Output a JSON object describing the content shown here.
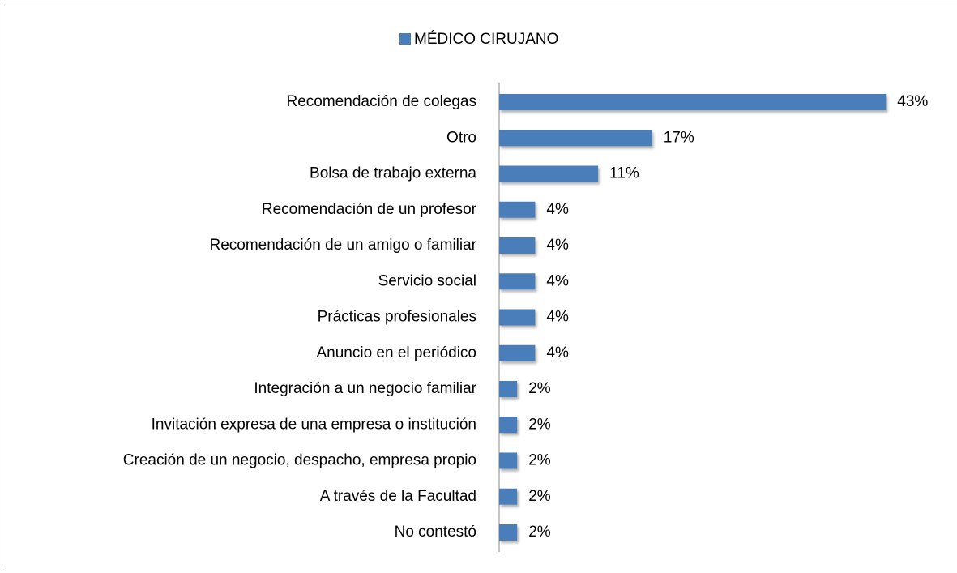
{
  "chart_data": {
    "type": "bar",
    "orientation": "horizontal",
    "categories": [
      "Recomendación de colegas",
      "Otro",
      "Bolsa de trabajo externa",
      "Recomendación de un profesor",
      "Recomendación de un amigo o familiar",
      "Servicio social",
      "Prácticas profesionales",
      "Anuncio en el periódico",
      "Integración a un negocio familiar",
      "Invitación expresa de una empresa o institución",
      "Creación de un negocio, despacho, empresa propio",
      "A través de la Facultad",
      "No contestó"
    ],
    "series": [
      {
        "name": "MÉDICO CIRUJANO",
        "color": "#4a7ebb",
        "values": [
          43,
          17,
          11,
          4,
          4,
          4,
          4,
          4,
          2,
          2,
          2,
          2,
          2
        ],
        "value_labels": [
          "43%",
          "17%",
          "11%",
          "4%",
          "4%",
          "4%",
          "4%",
          "4%",
          "2%",
          "2%",
          "2%",
          "2%",
          "2%"
        ]
      }
    ],
    "legend": "top"
  }
}
